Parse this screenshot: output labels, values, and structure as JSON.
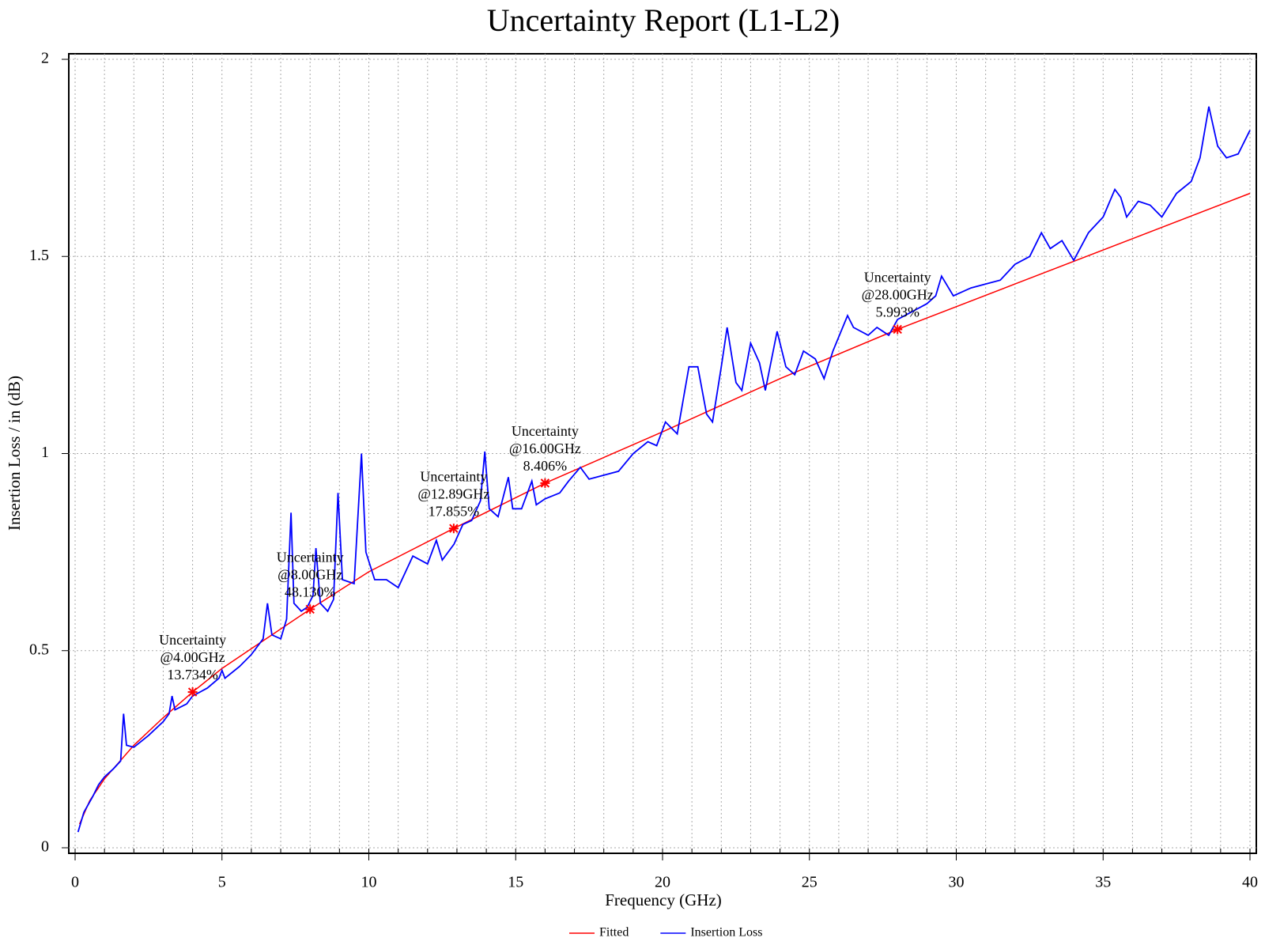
{
  "chart_data": {
    "type": "line",
    "title": "Uncertainty Report (L1-L2)",
    "x_label": "Frequency (GHz)",
    "y_label": "Insertion Loss / in (dB)",
    "xlim": [
      0,
      40
    ],
    "ylim": [
      0,
      2
    ],
    "xticks": [
      0,
      5,
      10,
      15,
      20,
      25,
      30,
      35,
      40
    ],
    "yticks": [
      0,
      0.5,
      1,
      1.5,
      2
    ],
    "xminorticks": [
      0,
      1,
      2,
      3,
      4,
      5,
      6,
      7,
      8,
      9,
      10,
      11,
      12,
      13,
      14,
      15,
      16,
      17,
      18,
      19,
      20,
      21,
      22,
      23,
      24,
      25,
      26,
      27,
      28,
      29,
      30,
      31,
      32,
      33,
      34,
      35,
      36,
      37,
      38,
      39,
      40
    ],
    "grid": true,
    "legend": "bottom",
    "series": [
      {
        "name": "Fitted",
        "color": "#ff0000",
        "x": [
          0.15,
          0.5,
          1,
          2,
          3,
          4,
          5,
          6,
          8,
          10,
          12.89,
          16,
          20,
          24,
          28,
          32,
          36,
          40
        ],
        "values": [
          0.06,
          0.12,
          0.175,
          0.26,
          0.33,
          0.395,
          0.455,
          0.505,
          0.605,
          0.7,
          0.81,
          0.925,
          1.055,
          1.19,
          1.315,
          1.43,
          1.545,
          1.66
        ]
      },
      {
        "name": "Insertion Loss",
        "color": "#0000ff",
        "x": [
          0.1,
          0.3,
          0.6,
          0.8,
          1.0,
          1.3,
          1.55,
          1.65,
          1.75,
          2.0,
          2.5,
          3.0,
          3.2,
          3.3,
          3.4,
          3.8,
          4.0,
          4.5,
          4.9,
          5.0,
          5.1,
          5.6,
          6.0,
          6.4,
          6.55,
          6.7,
          7.0,
          7.2,
          7.35,
          7.45,
          7.7,
          7.9,
          8.1,
          8.2,
          8.35,
          8.6,
          8.8,
          8.95,
          9.1,
          9.5,
          9.75,
          9.9,
          10.2,
          10.6,
          11.0,
          11.5,
          12.0,
          12.3,
          12.5,
          12.9,
          13.2,
          13.5,
          13.8,
          13.95,
          14.1,
          14.4,
          14.75,
          14.9,
          15.2,
          15.55,
          15.7,
          16.0,
          16.5,
          16.8,
          17.2,
          17.5,
          18.0,
          18.5,
          19.0,
          19.5,
          19.8,
          20.1,
          20.5,
          20.9,
          21.2,
          21.5,
          21.7,
          22.0,
          22.2,
          22.5,
          22.7,
          23.0,
          23.3,
          23.5,
          23.9,
          24.2,
          24.5,
          24.8,
          25.2,
          25.5,
          25.8,
          26.3,
          26.5,
          27.0,
          27.3,
          27.7,
          28.0,
          28.5,
          29.0,
          29.3,
          29.5,
          29.9,
          30.5,
          31.0,
          31.5,
          32.0,
          32.5,
          32.9,
          33.2,
          33.6,
          34.0,
          34.5,
          35.0,
          35.4,
          35.6,
          35.8,
          36.2,
          36.6,
          37.0,
          37.5,
          38.0,
          38.3,
          38.6,
          38.9,
          39.2,
          39.6,
          40.0
        ],
        "values": [
          0.04,
          0.09,
          0.13,
          0.16,
          0.18,
          0.2,
          0.22,
          0.34,
          0.26,
          0.255,
          0.285,
          0.32,
          0.34,
          0.385,
          0.35,
          0.365,
          0.385,
          0.405,
          0.43,
          0.45,
          0.43,
          0.46,
          0.49,
          0.53,
          0.62,
          0.54,
          0.53,
          0.58,
          0.85,
          0.62,
          0.6,
          0.61,
          0.64,
          0.76,
          0.62,
          0.6,
          0.63,
          0.9,
          0.68,
          0.67,
          1.0,
          0.75,
          0.68,
          0.68,
          0.66,
          0.74,
          0.72,
          0.78,
          0.73,
          0.77,
          0.82,
          0.83,
          0.88,
          1.005,
          0.86,
          0.84,
          0.94,
          0.86,
          0.86,
          0.93,
          0.87,
          0.885,
          0.9,
          0.93,
          0.965,
          0.935,
          0.945,
          0.955,
          1.0,
          1.03,
          1.02,
          1.08,
          1.05,
          1.22,
          1.22,
          1.1,
          1.08,
          1.22,
          1.32,
          1.18,
          1.16,
          1.28,
          1.23,
          1.16,
          1.31,
          1.22,
          1.2,
          1.26,
          1.24,
          1.19,
          1.26,
          1.35,
          1.32,
          1.3,
          1.32,
          1.3,
          1.34,
          1.36,
          1.38,
          1.4,
          1.45,
          1.4,
          1.42,
          1.43,
          1.44,
          1.48,
          1.5,
          1.56,
          1.52,
          1.54,
          1.49,
          1.56,
          1.6,
          1.67,
          1.65,
          1.6,
          1.64,
          1.63,
          1.6,
          1.66,
          1.69,
          1.75,
          1.88,
          1.78,
          1.75,
          1.76,
          1.82
        ]
      }
    ],
    "annotations": [
      {
        "x": 4,
        "y": 0.395,
        "text": [
          "Uncertainty",
          "@4.00GHz",
          "13.734%"
        ]
      },
      {
        "x": 8,
        "y": 0.605,
        "text": [
          "Uncertainty",
          "@8.00GHz",
          "48.130%"
        ]
      },
      {
        "x": 12.89,
        "y": 0.81,
        "text": [
          "Uncertainty",
          "@12.89GHz",
          "17.855%"
        ]
      },
      {
        "x": 16,
        "y": 0.925,
        "text": [
          "Uncertainty",
          "@16.00GHz",
          "8.406%"
        ]
      },
      {
        "x": 28,
        "y": 1.315,
        "text": [
          "Uncertainty",
          "@28.00GHz",
          "5.993%"
        ]
      }
    ]
  }
}
